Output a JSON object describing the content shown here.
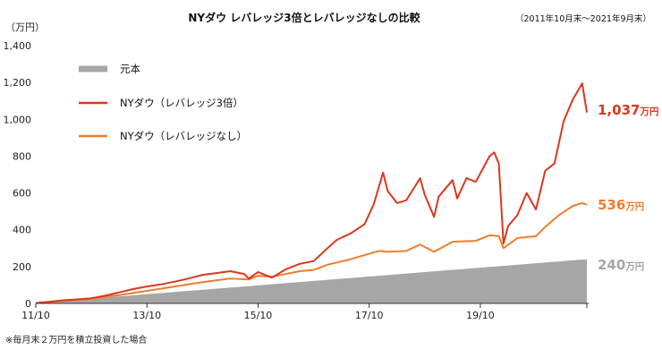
{
  "chart_data": {
    "type": "line",
    "title": "NYダウ レバレッジ3倍とレバレッジなしの比較",
    "subtitle": "（2011年10月末〜2021年9月末）",
    "ylabel": "（万円）",
    "xlabel": "",
    "ylim": [
      0,
      1400
    ],
    "yticks": [
      "0",
      "200",
      "400",
      "600",
      "800",
      "1,000",
      "1,200",
      "1,400"
    ],
    "xticks": [
      "11/10",
      "13/10",
      "15/10",
      "17/10",
      "19/10"
    ],
    "x_range": [
      "2011-10",
      "2021-09"
    ],
    "grid": false,
    "legend_position": "top-left",
    "note": "※毎月末２万円を積立投資した場合",
    "colors": {
      "principal": "#a6a6a6",
      "lev3": "#d9381e",
      "nolev": "#ee7d2b"
    },
    "series": [
      {
        "name": "元本",
        "style": "area",
        "end_label": "240",
        "end_unit": "万円",
        "points": [
          [
            "2011-10",
            2
          ],
          [
            "2021-09",
            240
          ]
        ]
      },
      {
        "name": "NYダウ（レバレッジ3倍）",
        "style": "line",
        "end_label": "1,037",
        "end_unit": "万円",
        "points": [
          [
            "2011-10",
            2
          ],
          [
            "2012-01",
            9
          ],
          [
            "2012-04",
            17
          ],
          [
            "2012-07",
            22
          ],
          [
            "2012-10",
            28
          ],
          [
            "2013-01",
            42
          ],
          [
            "2013-04",
            60
          ],
          [
            "2013-07",
            78
          ],
          [
            "2013-10",
            92
          ],
          [
            "2014-01",
            103
          ],
          [
            "2014-04",
            118
          ],
          [
            "2014-07",
            135
          ],
          [
            "2014-10",
            155
          ],
          [
            "2015-01",
            165
          ],
          [
            "2015-04",
            175
          ],
          [
            "2015-07",
            160
          ],
          [
            "2015-08",
            135
          ],
          [
            "2015-10",
            170
          ],
          [
            "2016-01",
            140
          ],
          [
            "2016-04",
            185
          ],
          [
            "2016-07",
            215
          ],
          [
            "2016-10",
            230
          ],
          [
            "2017-01",
            300
          ],
          [
            "2017-03",
            345
          ],
          [
            "2017-06",
            380
          ],
          [
            "2017-09",
            430
          ],
          [
            "2017-11",
            540
          ],
          [
            "2018-01",
            710
          ],
          [
            "2018-02",
            610
          ],
          [
            "2018-04",
            545
          ],
          [
            "2018-06",
            560
          ],
          [
            "2018-09",
            680
          ],
          [
            "2018-10",
            590
          ],
          [
            "2018-12",
            470
          ],
          [
            "2019-01",
            580
          ],
          [
            "2019-04",
            670
          ],
          [
            "2019-05",
            570
          ],
          [
            "2019-07",
            680
          ],
          [
            "2019-09",
            660
          ],
          [
            "2019-12",
            800
          ],
          [
            "2020-01",
            820
          ],
          [
            "2020-02",
            760
          ],
          [
            "2020-03",
            325
          ],
          [
            "2020-04",
            420
          ],
          [
            "2020-06",
            480
          ],
          [
            "2020-08",
            600
          ],
          [
            "2020-10",
            510
          ],
          [
            "2020-12",
            720
          ],
          [
            "2021-02",
            760
          ],
          [
            "2021-04",
            990
          ],
          [
            "2021-06",
            1110
          ],
          [
            "2021-08",
            1195
          ],
          [
            "2021-09",
            1037
          ]
        ]
      },
      {
        "name": "NYダウ（レバレッジなし）",
        "style": "line",
        "end_label": "536",
        "end_unit": "万円",
        "points": [
          [
            "2011-10",
            2
          ],
          [
            "2012-04",
            14
          ],
          [
            "2012-10",
            25
          ],
          [
            "2013-04",
            45
          ],
          [
            "2013-10",
            68
          ],
          [
            "2014-04",
            92
          ],
          [
            "2014-10",
            115
          ],
          [
            "2015-04",
            135
          ],
          [
            "2015-08",
            130
          ],
          [
            "2015-10",
            150
          ],
          [
            "2016-01",
            145
          ],
          [
            "2016-07",
            175
          ],
          [
            "2016-10",
            182
          ],
          [
            "2017-01",
            210
          ],
          [
            "2017-06",
            240
          ],
          [
            "2017-12",
            285
          ],
          [
            "2018-02",
            280
          ],
          [
            "2018-06",
            285
          ],
          [
            "2018-09",
            320
          ],
          [
            "2018-12",
            280
          ],
          [
            "2019-04",
            335
          ],
          [
            "2019-09",
            340
          ],
          [
            "2019-12",
            370
          ],
          [
            "2020-02",
            365
          ],
          [
            "2020-03",
            300
          ],
          [
            "2020-06",
            355
          ],
          [
            "2020-10",
            365
          ],
          [
            "2020-12",
            415
          ],
          [
            "2021-03",
            480
          ],
          [
            "2021-06",
            530
          ],
          [
            "2021-08",
            545
          ],
          [
            "2021-09",
            536
          ]
        ]
      }
    ]
  }
}
